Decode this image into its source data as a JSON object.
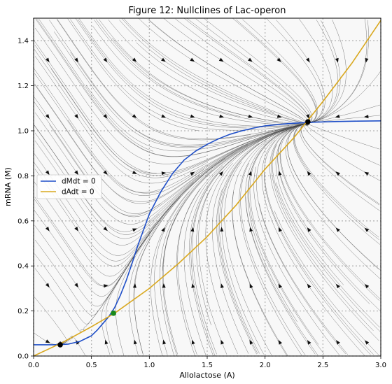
{
  "chart_data": {
    "type": "line",
    "title": "Figure 12: Nullclines of Lac-operon",
    "xlabel": "Allolactose (A)",
    "ylabel": "mRNA (M)",
    "xlim": [
      0.0,
      3.0
    ],
    "ylim": [
      0.0,
      1.5
    ],
    "xticks": [
      0.0,
      0.5,
      1.0,
      1.5,
      2.0,
      2.5,
      3.0
    ],
    "xtick_labels": [
      "0.0",
      "0.5",
      "1.0",
      "1.5",
      "2.0",
      "2.5",
      "3.0"
    ],
    "yticks": [
      0.0,
      0.2,
      0.4,
      0.6,
      0.8,
      1.0,
      1.2,
      1.4
    ],
    "ytick_labels": [
      "0.0",
      "0.2",
      "0.4",
      "0.6",
      "0.8",
      "1.0",
      "1.2",
      "1.4"
    ],
    "grid": true,
    "legend_position": "center-left",
    "series": [
      {
        "name": "dMdt = 0",
        "color": "#1f4fc8",
        "x": [
          0.0,
          0.2,
          0.3,
          0.4,
          0.5,
          0.55,
          0.6,
          0.65,
          0.7,
          0.75,
          0.8,
          0.85,
          0.9,
          1.0,
          1.1,
          1.2,
          1.3,
          1.4,
          1.5,
          1.6,
          1.7,
          1.8,
          1.9,
          2.0,
          2.2,
          2.4,
          2.6,
          2.8,
          3.0
        ],
        "y": [
          0.05,
          0.05,
          0.053,
          0.065,
          0.09,
          0.115,
          0.145,
          0.175,
          0.215,
          0.27,
          0.335,
          0.41,
          0.49,
          0.63,
          0.73,
          0.81,
          0.87,
          0.91,
          0.94,
          0.965,
          0.985,
          1.0,
          1.012,
          1.022,
          1.032,
          1.038,
          1.041,
          1.043,
          1.044
        ]
      },
      {
        "name": "dAdt = 0",
        "color": "#d9a81f",
        "x": [
          0.0,
          0.25,
          0.5,
          0.7,
          1.0,
          1.25,
          1.5,
          1.75,
          2.0,
          2.25,
          2.5,
          2.75,
          3.0
        ],
        "y": [
          0.0,
          0.06,
          0.13,
          0.19,
          0.3,
          0.41,
          0.53,
          0.67,
          0.83,
          0.97,
          1.13,
          1.3,
          1.49
        ]
      }
    ],
    "points": [
      {
        "x": 0.23,
        "y": 0.05,
        "color": "#000000"
      },
      {
        "x": 0.69,
        "y": 0.19,
        "color": "#1a8a1a"
      },
      {
        "x": 2.37,
        "y": 1.04,
        "color": "#000000"
      }
    ]
  }
}
